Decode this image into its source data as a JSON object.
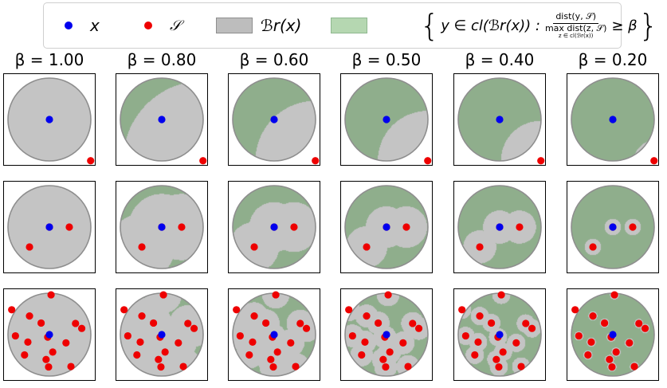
{
  "legend": {
    "point_x": {
      "symbol": "x",
      "color": "#0000ff"
    },
    "set_s": {
      "symbol": "𝒮",
      "color": "#ff0000"
    },
    "ball": {
      "symbol": "ℬr(x)",
      "color": "#c0c0c0"
    },
    "region": {
      "color": "#8fb88f",
      "lhs": "y ∈ cl(ℬr(x)) :",
      "numerator": "dist(y, 𝒮)",
      "denominator": "max dist(z, 𝒮)",
      "denominator_sub": "z ∈ cl(ℬr(x))",
      "rhs": "≥ β"
    }
  },
  "columns": [
    "β = 1.00",
    "β = 0.80",
    "β = 0.60",
    "β = 0.50",
    "β = 0.40",
    "β = 0.20"
  ],
  "betas": [
    1.0,
    0.8,
    0.6,
    0.5,
    0.4,
    0.2
  ],
  "colors": {
    "ball_fill": "#c4c4c4",
    "ball_edge": "#8e8e8e",
    "region_fill": "#8fae8c",
    "x_point": "#0000ee",
    "s_point": "#ee0000"
  },
  "rows": [
    {
      "name": "one-point",
      "s_points": [
        [
          0.995,
          -0.995
        ]
      ]
    },
    {
      "name": "three-points",
      "s_points": [
        [
          0.48,
          0.0
        ],
        [
          -0.48,
          -0.48
        ],
        [
          0.0,
          0.0
        ]
      ]
    },
    {
      "name": "many-points",
      "s_points": [
        [
          -0.91,
          0.6
        ],
        [
          0.04,
          0.96
        ],
        [
          -0.48,
          0.45
        ],
        [
          -0.2,
          0.28
        ],
        [
          0.63,
          0.27
        ],
        [
          0.78,
          0.15
        ],
        [
          -0.82,
          -0.03
        ],
        [
          0.4,
          -0.2
        ],
        [
          -0.52,
          -0.18
        ],
        [
          -0.6,
          -0.49
        ],
        [
          -0.08,
          -0.6
        ],
        [
          0.08,
          -0.42
        ],
        [
          -0.02,
          -0.78
        ],
        [
          0.52,
          -0.77
        ],
        [
          -0.04,
          -0.06
        ]
      ]
    }
  ],
  "x_point": [
    0.0,
    0.0
  ]
}
